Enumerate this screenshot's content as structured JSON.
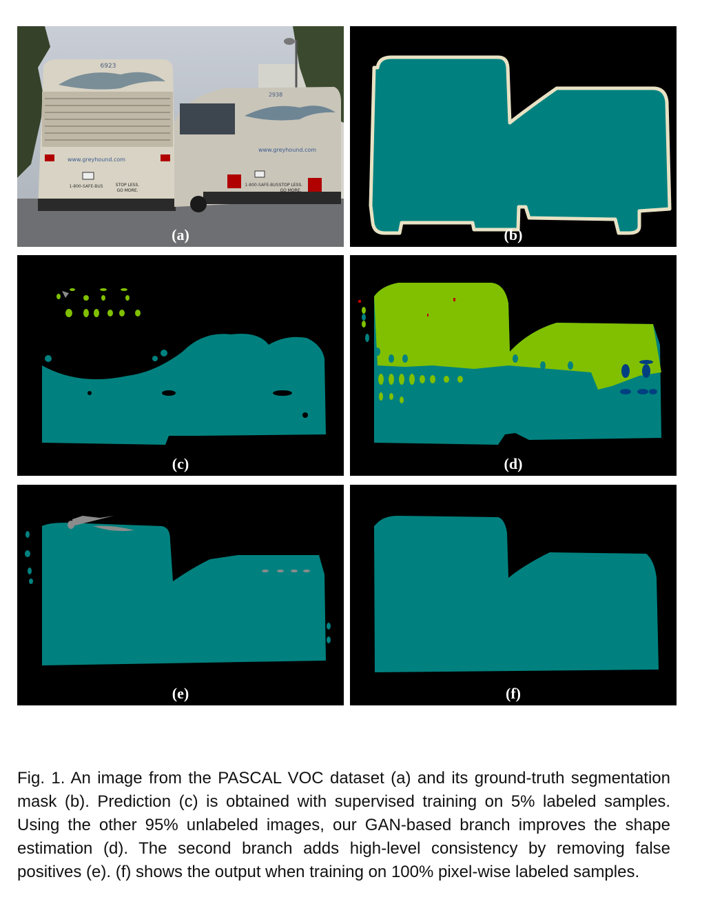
{
  "figure": {
    "panels": [
      {
        "id": "a",
        "label": "(a)"
      },
      {
        "id": "b",
        "label": "(b)"
      },
      {
        "id": "c",
        "label": "(c)"
      },
      {
        "id": "d",
        "label": "(d)"
      },
      {
        "id": "e",
        "label": "(e)"
      },
      {
        "id": "f",
        "label": "(f)"
      }
    ],
    "photo_text": {
      "bus1_number": "6923",
      "bus2_number": "2938",
      "website": "www.greyhound.com",
      "phone": "1-800-SAFE-BUS",
      "slogan_line1": "STOP LESS.",
      "slogan_line2": "GO MORE."
    },
    "caption": "Fig. 1. An image from the PASCAL VOC dataset (a) and its ground-truth segmentation mask (b). Prediction (c) is obtained with supervised training on 5% labeled samples. Using the other 95% unlabeled images, our GAN-based branch improves the shape estimation (d). The second branch adds high-level consistency by removing false positives (e). (f) shows the output when training on 100% pixel-wise labeled samples."
  },
  "colors": {
    "bus_class": "#00817f",
    "outline": "#e8e2c4",
    "green_class": "#80c000",
    "blue_class": "#004080",
    "gray_class": "#8c8c8c",
    "red_class": "#c00000"
  }
}
